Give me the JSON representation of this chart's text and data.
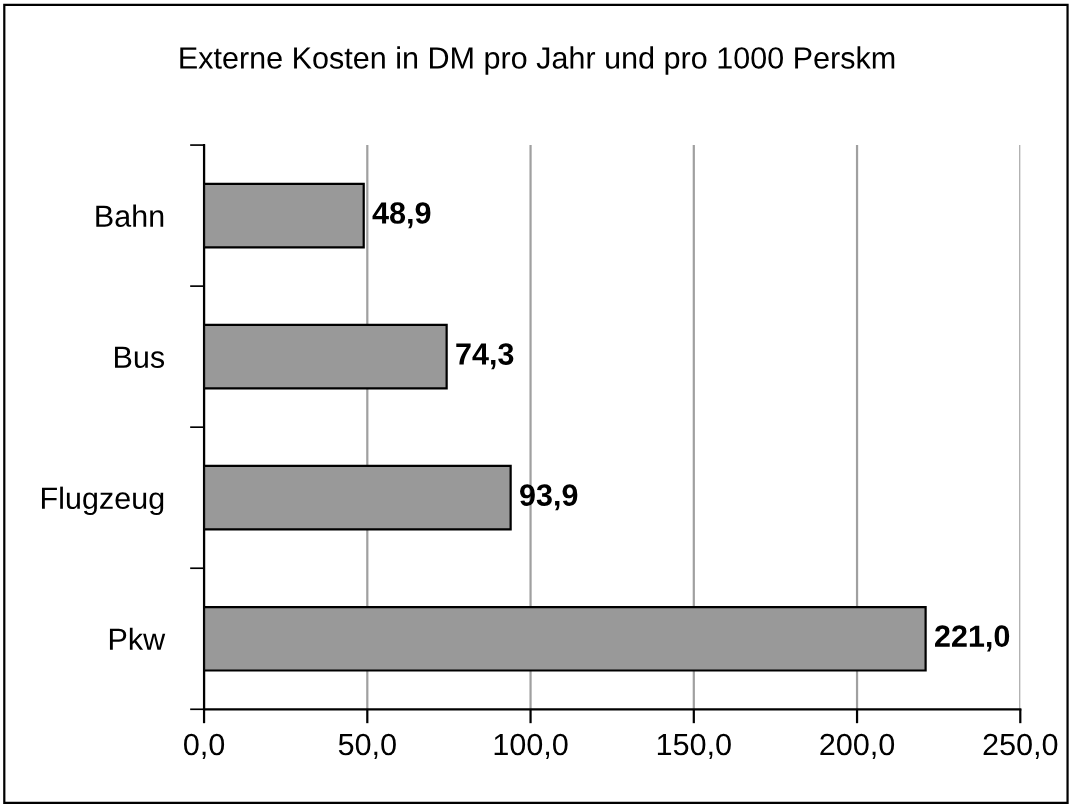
{
  "chart_data": {
    "type": "bar",
    "orientation": "horizontal",
    "title": "Externe Kosten in DM pro Jahr und pro 1000 Perskm",
    "categories": [
      "Bahn",
      "Bus",
      "Flugzeug",
      "Pkw"
    ],
    "values": [
      48.9,
      74.3,
      93.9,
      221.0
    ],
    "value_labels": [
      "48,9",
      "74,3",
      "93,9",
      "221,0"
    ],
    "color": "#999999",
    "xlim": [
      0,
      250
    ],
    "xticks": [
      {
        "value": 0,
        "label": "0,0"
      },
      {
        "value": 50,
        "label": "50,0"
      },
      {
        "value": 100,
        "label": "100,0"
      },
      {
        "value": 150,
        "label": "150,0"
      },
      {
        "value": 200,
        "label": "200,0"
      },
      {
        "value": 250,
        "label": "250,0"
      }
    ],
    "grid": "x"
  }
}
